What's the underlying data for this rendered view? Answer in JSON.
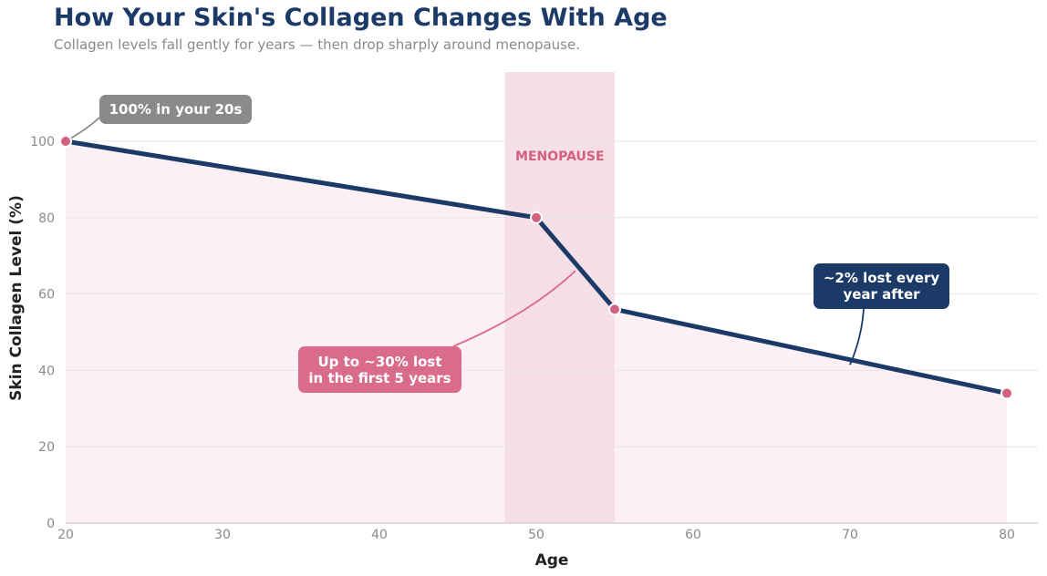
{
  "chart_data": {
    "type": "line",
    "title": "How Your Skin's Collagen Changes With Age",
    "subtitle": "Collagen levels fall gently for years — then drop sharply around menopause.",
    "xlabel": "Age",
    "ylabel": "Skin Collagen Level (%)",
    "x": [
      20,
      50,
      55,
      80
    ],
    "series": [
      {
        "values": [
          100,
          80,
          56,
          34
        ]
      }
    ],
    "xlim": [
      20,
      82
    ],
    "ylim": [
      0,
      115
    ],
    "xticks": [
      20,
      30,
      40,
      50,
      60,
      70,
      80
    ],
    "yticks": [
      0,
      20,
      40,
      60,
      80,
      100
    ],
    "grid": "horizontal",
    "band": {
      "label": "MENOPAUSE",
      "x_start": 48,
      "x_end": 55
    },
    "annotations": [
      {
        "id": "start",
        "lines": [
          "100% in your 20s"
        ],
        "point": [
          20,
          100
        ]
      },
      {
        "id": "drop",
        "lines": [
          "Up to ~30% lost",
          "in the first 5 years"
        ],
        "point": [
          52.5,
          68
        ]
      },
      {
        "id": "after",
        "lines": [
          "~2% lost every",
          "year after"
        ],
        "point": [
          70,
          41
        ]
      }
    ],
    "colors": {
      "line": "#1b3a68",
      "marker": "#d4607f",
      "band": "#f5dbe3",
      "fill": "#fcf0f4",
      "callout_gray": "#8a8a8a",
      "callout_pink": "#d96b8c",
      "callout_navy": "#1b3a68",
      "band_label": "#d4607f"
    }
  }
}
